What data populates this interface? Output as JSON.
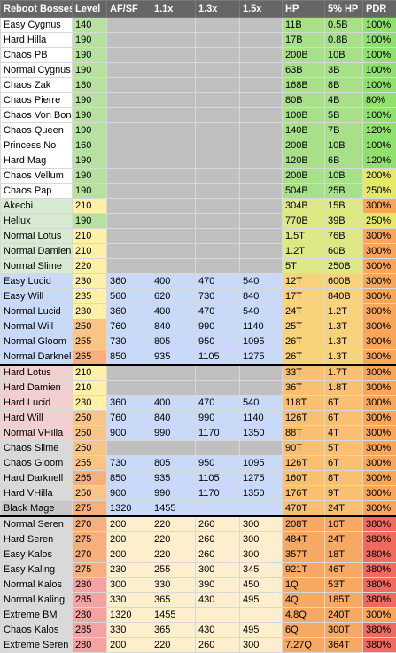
{
  "headers": [
    "Reboot Bosses",
    "Level",
    "AF/SF",
    "1.1x",
    "1.3x",
    "1.5x",
    "HP",
    "5% HP",
    "PDR"
  ],
  "colors": {
    "header_bg": "#666666",
    "level_green": "#b7e1a1",
    "level_yellow": "#fff2a8",
    "level_orange": "#f8c586",
    "level_red": "#f4a3a3",
    "grey_cell": "#c0c0c0",
    "blue_cell": "#c9daf8",
    "cream_cell": "#fdeecd",
    "pdr_green": "#90e070",
    "pdr_yellow": "#e6e86a",
    "pdr_orange": "#f7a65a",
    "pdr_red": "#f06a5e"
  },
  "rows": [
    {
      "name": "Easy Cygnus",
      "level": "140",
      "af": "",
      "x11": "",
      "x13": "",
      "x15": "",
      "hp": "11B",
      "hp5": "0.5B",
      "pdr": "100%"
    },
    {
      "name": "Hard Hilla",
      "level": "190",
      "af": "",
      "x11": "",
      "x13": "",
      "x15": "",
      "hp": "17B",
      "hp5": "0.8B",
      "pdr": "100%"
    },
    {
      "name": "Chaos PB",
      "level": "190",
      "af": "",
      "x11": "",
      "x13": "",
      "x15": "",
      "hp": "200B",
      "hp5": "10B",
      "pdr": "100%"
    },
    {
      "name": "Normal Cygnus",
      "level": "190",
      "af": "",
      "x11": "",
      "x13": "",
      "x15": "",
      "hp": "63B",
      "hp5": "3B",
      "pdr": "100%"
    },
    {
      "name": "Chaos Zak",
      "level": "180",
      "af": "",
      "x11": "",
      "x13": "",
      "x15": "",
      "hp": "168B",
      "hp5": "8B",
      "pdr": "100%"
    },
    {
      "name": "Chaos Pierre",
      "level": "190",
      "af": "",
      "x11": "",
      "x13": "",
      "x15": "",
      "hp": "80B",
      "hp5": "4B",
      "pdr": "80%"
    },
    {
      "name": "Chaos Von Bon",
      "level": "190",
      "af": "",
      "x11": "",
      "x13": "",
      "x15": "",
      "hp": "100B",
      "hp5": "5B",
      "pdr": "100%"
    },
    {
      "name": "Chaos Queen",
      "level": "190",
      "af": "",
      "x11": "",
      "x13": "",
      "x15": "",
      "hp": "140B",
      "hp5": "7B",
      "pdr": "120%"
    },
    {
      "name": "Princess No",
      "level": "160",
      "af": "",
      "x11": "",
      "x13": "",
      "x15": "",
      "hp": "200B",
      "hp5": "10B",
      "pdr": "100%"
    },
    {
      "name": "Hard Mag",
      "level": "190",
      "af": "",
      "x11": "",
      "x13": "",
      "x15": "",
      "hp": "120B",
      "hp5": "6B",
      "pdr": "120%"
    },
    {
      "name": "Chaos Vellum",
      "level": "190",
      "af": "",
      "x11": "",
      "x13": "",
      "x15": "",
      "hp": "200B",
      "hp5": "10B",
      "pdr": "200%"
    },
    {
      "name": "Chaos Pap",
      "level": "190",
      "af": "",
      "x11": "",
      "x13": "",
      "x15": "",
      "hp": "504B",
      "hp5": "25B",
      "pdr": "250%"
    },
    {
      "name": "Akechi",
      "level": "210",
      "af": "",
      "x11": "",
      "x13": "",
      "x15": "",
      "hp": "304B",
      "hp5": "15B",
      "pdr": "300%"
    },
    {
      "name": "Hellux",
      "level": "190",
      "af": "",
      "x11": "",
      "x13": "",
      "x15": "",
      "hp": "770B",
      "hp5": "39B",
      "pdr": "250%"
    },
    {
      "name": "Normal Lotus",
      "level": "210",
      "af": "",
      "x11": "",
      "x13": "",
      "x15": "",
      "hp": "1.5T",
      "hp5": "76B",
      "pdr": "300%"
    },
    {
      "name": "Normal Damien",
      "level": "210",
      "af": "",
      "x11": "",
      "x13": "",
      "x15": "",
      "hp": "1.2T",
      "hp5": "60B",
      "pdr": "300%"
    },
    {
      "name": "Normal Slime",
      "level": "220",
      "af": "",
      "x11": "",
      "x13": "",
      "x15": "",
      "hp": "5T",
      "hp5": "250B",
      "pdr": "300%"
    },
    {
      "name": "Easy Lucid",
      "level": "230",
      "af": "360",
      "x11": "400",
      "x13": "470",
      "x15": "540",
      "hp": "12T",
      "hp5": "600B",
      "pdr": "300%"
    },
    {
      "name": "Easy Will",
      "level": "235",
      "af": "560",
      "x11": "620",
      "x13": "730",
      "x15": "840",
      "hp": "17T",
      "hp5": "840B",
      "pdr": "300%"
    },
    {
      "name": "Normal Lucid",
      "level": "230",
      "af": "360",
      "x11": "400",
      "x13": "470",
      "x15": "540",
      "hp": "24T",
      "hp5": "1.2T",
      "pdr": "300%"
    },
    {
      "name": "Normal Will",
      "level": "250",
      "af": "760",
      "x11": "840",
      "x13": "990",
      "x15": "1140",
      "hp": "25T",
      "hp5": "1.3T",
      "pdr": "300%"
    },
    {
      "name": "Normal Gloom",
      "level": "255",
      "af": "730",
      "x11": "805",
      "x13": "950",
      "x15": "1095",
      "hp": "26T",
      "hp5": "1.3T",
      "pdr": "300%"
    },
    {
      "name": "Normal Darknell",
      "level": "265",
      "af": "850",
      "x11": "935",
      "x13": "1105",
      "x15": "1275",
      "hp": "26T",
      "hp5": "1.3T",
      "pdr": "300%"
    },
    {
      "name": "Hard Lotus",
      "level": "210",
      "af": "",
      "x11": "",
      "x13": "",
      "x15": "",
      "hp": "33T",
      "hp5": "1.7T",
      "pdr": "300%"
    },
    {
      "name": "Hard Damien",
      "level": "210",
      "af": "",
      "x11": "",
      "x13": "",
      "x15": "",
      "hp": "36T",
      "hp5": "1.8T",
      "pdr": "300%"
    },
    {
      "name": "Hard Lucid",
      "level": "230",
      "af": "360",
      "x11": "400",
      "x13": "470",
      "x15": "540",
      "hp": "118T",
      "hp5": "6T",
      "pdr": "300%"
    },
    {
      "name": "Hard Will",
      "level": "250",
      "af": "760",
      "x11": "840",
      "x13": "990",
      "x15": "1140",
      "hp": "126T",
      "hp5": "6T",
      "pdr": "300%"
    },
    {
      "name": "Normal VHilla",
      "level": "250",
      "af": "900",
      "x11": "990",
      "x13": "1170",
      "x15": "1350",
      "hp": "88T",
      "hp5": "4T",
      "pdr": "300%"
    },
    {
      "name": "Chaos Slime",
      "level": "250",
      "af": "",
      "x11": "",
      "x13": "",
      "x15": "",
      "hp": "90T",
      "hp5": "5T",
      "pdr": "300%"
    },
    {
      "name": "Chaos Gloom",
      "level": "255",
      "af": "730",
      "x11": "805",
      "x13": "950",
      "x15": "1095",
      "hp": "126T",
      "hp5": "6T",
      "pdr": "300%"
    },
    {
      "name": "Hard Darknell",
      "level": "265",
      "af": "850",
      "x11": "935",
      "x13": "1105",
      "x15": "1275",
      "hp": "160T",
      "hp5": "8T",
      "pdr": "300%"
    },
    {
      "name": "Hard VHilla",
      "level": "250",
      "af": "900",
      "x11": "990",
      "x13": "1170",
      "x15": "1350",
      "hp": "176T",
      "hp5": "9T",
      "pdr": "300%"
    },
    {
      "name": "Black Mage",
      "level": "275",
      "af": "1320",
      "x11": "1455",
      "x13": "",
      "x15": "",
      "hp": "470T",
      "hp5": "24T",
      "pdr": "300%"
    },
    {
      "name": "Normal Seren",
      "level": "270",
      "af": "200",
      "x11": "220",
      "x13": "260",
      "x15": "300",
      "hp": "208T",
      "hp5": "10T",
      "pdr": "380%"
    },
    {
      "name": "Hard Seren",
      "level": "275",
      "af": "200",
      "x11": "220",
      "x13": "260",
      "x15": "300",
      "hp": "484T",
      "hp5": "24T",
      "pdr": "380%"
    },
    {
      "name": "Easy Kalos",
      "level": "270",
      "af": "200",
      "x11": "220",
      "x13": "260",
      "x15": "300",
      "hp": "357T",
      "hp5": "18T",
      "pdr": "380%"
    },
    {
      "name": "Easy Kaling",
      "level": "275",
      "af": "230",
      "x11": "255",
      "x13": "300",
      "x15": "345",
      "hp": "921T",
      "hp5": "46T",
      "pdr": "380%"
    },
    {
      "name": "Normal Kalos",
      "level": "280",
      "af": "300",
      "x11": "330",
      "x13": "390",
      "x15": "450",
      "hp": "1Q",
      "hp5": "53T",
      "pdr": "380%"
    },
    {
      "name": "Normal Kaling",
      "level": "285",
      "af": "330",
      "x11": "365",
      "x13": "430",
      "x15": "495",
      "hp": "4Q",
      "hp5": "185T",
      "pdr": "380%"
    },
    {
      "name": "Extreme BM",
      "level": "280",
      "af": "1320",
      "x11": "1455",
      "x13": "",
      "x15": "",
      "hp": "4.8Q",
      "hp5": "240T",
      "pdr": "300%"
    },
    {
      "name": "Chaos Kalos",
      "level": "285",
      "af": "330",
      "x11": "365",
      "x13": "430",
      "x15": "495",
      "hp": "6Q",
      "hp5": "300T",
      "pdr": "380%"
    },
    {
      "name": "Extreme Seren",
      "level": "280",
      "af": "200",
      "x11": "220",
      "x13": "260",
      "x15": "300",
      "hp": "7.27Q",
      "hp5": "364T",
      "pdr": "380%"
    }
  ]
}
